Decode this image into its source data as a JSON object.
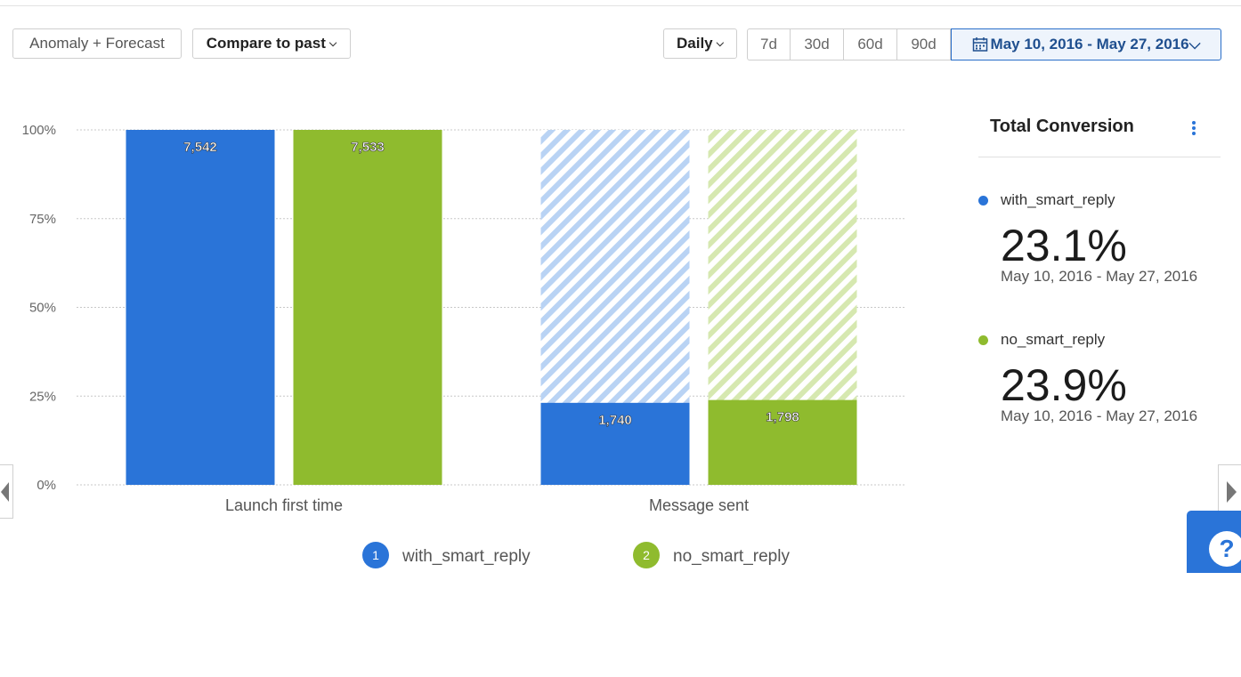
{
  "toolbar": {
    "anomaly_label": "Anomaly + Forecast",
    "compare_label": "Compare to past",
    "interval_label": "Daily",
    "ranges": [
      "7d",
      "30d",
      "60d",
      "90d"
    ],
    "date_range": "May 10, 2016 - May 27, 2016"
  },
  "panel": {
    "title": "Total Conversion",
    "items": [
      {
        "name": "with_smart_reply",
        "pct": "23.1%",
        "range": "May 10, 2016 - May 27, 2016",
        "color": "#2a74d8"
      },
      {
        "name": "no_smart_reply",
        "pct": "23.9%",
        "range": "May 10, 2016 - May 27, 2016",
        "color": "#8fbb2e"
      }
    ]
  },
  "help": {
    "label": "?"
  },
  "chart_data": {
    "type": "bar",
    "categories": [
      "Launch first time",
      "Message sent"
    ],
    "y_ticks": [
      "0%",
      "25%",
      "50%",
      "75%",
      "100%"
    ],
    "ylim": [
      0,
      100
    ],
    "grid": true,
    "legend_position": "bottom",
    "series": [
      {
        "name": "with_smart_reply",
        "legend_index": "1",
        "color": "#2a74d8",
        "hatch_color": "#b9d3f4",
        "percent": [
          100,
          23.1
        ],
        "labels": [
          "7,542",
          "1,740"
        ]
      },
      {
        "name": "no_smart_reply",
        "legend_index": "2",
        "color": "#8fbb2e",
        "hatch_color": "#d6e8b0",
        "percent": [
          100,
          23.9
        ],
        "labels": [
          "7,533",
          "1,798"
        ]
      }
    ]
  }
}
